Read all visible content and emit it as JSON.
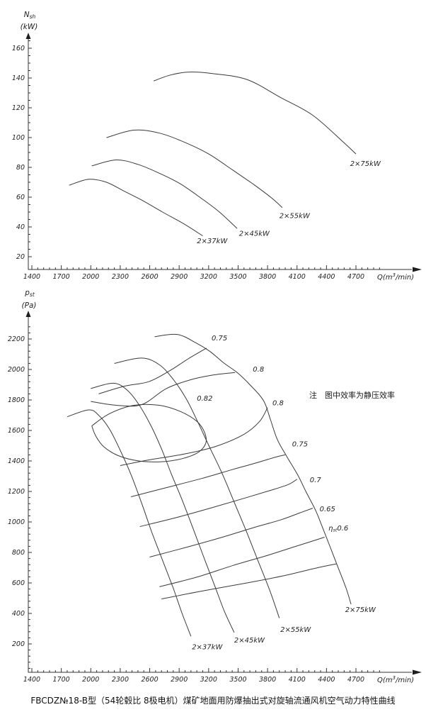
{
  "caption": "FBCDZ№18-B型（54轮毂比 8极电机）煤矿地面用防爆抽出式对旋轴流通风机空气动力特性曲线",
  "note": "注　图中效率为静压效率",
  "chart_data": [
    {
      "type": "line",
      "title": "shaft power vs flow",
      "xlabel": {
        "pre": "Q(m",
        "sup": "3",
        "post": "/min)"
      },
      "ylabel": {
        "main": "N",
        "sub": "sh",
        "unit": "(kW)"
      },
      "xlim": [
        1400,
        4700
      ],
      "xticks": [
        1400,
        1700,
        2000,
        2300,
        2600,
        2900,
        3200,
        3500,
        3800,
        4100,
        4400,
        4700
      ],
      "xminor_step": 60,
      "ylim": [
        20,
        160
      ],
      "yticks": [
        20,
        40,
        60,
        80,
        100,
        120,
        140,
        160
      ],
      "ytick_step": 20,
      "yminor": {
        "from": 25,
        "to": 165,
        "step": 5
      },
      "grid": false,
      "legend": "curve-end labels",
      "series": [
        {
          "name": "2×37kW",
          "points": [
            [
              1780,
              68
            ],
            [
              1980,
              72
            ],
            [
              2160,
              70
            ],
            [
              2340,
              64
            ],
            [
              2520,
              58
            ],
            [
              2730,
              50
            ],
            [
              2950,
              42
            ],
            [
              3140,
              34
            ]
          ],
          "label_at": [
            3080,
            29
          ]
        },
        {
          "name": "2×45kW",
          "points": [
            [
              2010,
              81
            ],
            [
              2260,
              85
            ],
            [
              2480,
              82
            ],
            [
              2700,
              76
            ],
            [
              2910,
              69
            ],
            [
              3130,
              59
            ],
            [
              3310,
              50
            ],
            [
              3490,
              39
            ]
          ],
          "label_at": [
            3510,
            34
          ]
        },
        {
          "name": "2×55kW",
          "points": [
            [
              2160,
              100
            ],
            [
              2440,
              105
            ],
            [
              2700,
              103
            ],
            [
              2950,
              97
            ],
            [
              3200,
              89
            ],
            [
              3450,
              78
            ],
            [
              3670,
              68
            ],
            [
              3850,
              59
            ],
            [
              3950,
              53
            ]
          ],
          "label_at": [
            3920,
            46
          ]
        },
        {
          "name": "2×75kW",
          "points": [
            [
              2640,
              138
            ],
            [
              2810,
              142
            ],
            [
              3000,
              144
            ],
            [
              3240,
              143
            ],
            [
              3590,
              139
            ],
            [
              3930,
              127
            ],
            [
              4260,
              115
            ],
            [
              4570,
              97
            ],
            [
              4700,
              89
            ]
          ],
          "label_at": [
            4640,
            81
          ]
        }
      ]
    },
    {
      "type": "line",
      "title": "static pressure vs flow with efficiency contours",
      "xlabel": {
        "pre": "Q(m",
        "sup": "3",
        "post": "/min)"
      },
      "ylabel": {
        "main": "p",
        "sub": "st",
        "unit": "(Pa)"
      },
      "xlim": [
        1400,
        4700
      ],
      "xticks": [
        1400,
        1700,
        2000,
        2300,
        2600,
        2900,
        3200,
        3500,
        3800,
        4100,
        4400,
        4700
      ],
      "xminor_step": 60,
      "ylim": [
        200,
        2200
      ],
      "yticks": [
        200,
        400,
        600,
        800,
        1000,
        1200,
        1400,
        1600,
        1800,
        2000,
        2200
      ],
      "ytick_step": 200,
      "yminor": {
        "from": 40,
        "to": 2280,
        "step": 40
      },
      "grid": false,
      "series": [
        {
          "name": "2×37kW",
          "points": [
            [
              1760,
              1690
            ],
            [
              1980,
              1735
            ],
            [
              2080,
              1700
            ],
            [
              2190,
              1610
            ],
            [
              2300,
              1470
            ],
            [
              2410,
              1310
            ],
            [
              2520,
              1120
            ],
            [
              2620,
              935
            ],
            [
              2730,
              750
            ],
            [
              2840,
              565
            ],
            [
              2930,
              400
            ],
            [
              3020,
              250
            ]
          ],
          "label_at": [
            3030,
            165
          ]
        },
        {
          "name": "2×45kW",
          "points": [
            [
              2000,
              1875
            ],
            [
              2230,
              1910
            ],
            [
              2370,
              1865
            ],
            [
              2490,
              1770
            ],
            [
              2610,
              1635
            ],
            [
              2720,
              1480
            ],
            [
              2820,
              1315
            ],
            [
              2930,
              1145
            ],
            [
              3040,
              960
            ],
            [
              3150,
              770
            ],
            [
              3260,
              585
            ],
            [
              3360,
              415
            ],
            [
              3460,
              275
            ]
          ],
          "label_at": [
            3460,
            210
          ]
        },
        {
          "name": "2×55kW",
          "points": [
            [
              2240,
              2040
            ],
            [
              2520,
              2075
            ],
            [
              2700,
              2030
            ],
            [
              2840,
              1935
            ],
            [
              2970,
              1810
            ],
            [
              3090,
              1655
            ],
            [
              3210,
              1490
            ],
            [
              3340,
              1315
            ],
            [
              3460,
              1130
            ],
            [
              3580,
              945
            ],
            [
              3700,
              750
            ],
            [
              3820,
              555
            ],
            [
              3920,
              370
            ]
          ],
          "label_at": [
            3930,
            280
          ]
        },
        {
          "name": "2×75kW",
          "points": [
            [
              2650,
              2215
            ],
            [
              2880,
              2230
            ],
            [
              3070,
              2175
            ],
            [
              3210,
              2120
            ],
            [
              3360,
              2040
            ],
            [
              3490,
              1980
            ],
            [
              3620,
              1900
            ],
            [
              3760,
              1795
            ],
            [
              3830,
              1670
            ],
            [
              3900,
              1540
            ],
            [
              4000,
              1425
            ],
            [
              4110,
              1305
            ],
            [
              4190,
              1200
            ],
            [
              4290,
              1075
            ],
            [
              4350,
              980
            ],
            [
              4420,
              865
            ],
            [
              4510,
              715
            ],
            [
              4600,
              565
            ],
            [
              4650,
              460
            ]
          ],
          "label_at": [
            4590,
            410
          ]
        }
      ],
      "contours": [
        {
          "name": "0.75",
          "points": [
            [
              2080,
              1840
            ],
            [
              2340,
              1890
            ],
            [
              2590,
              1920
            ],
            [
              2800,
              1990
            ],
            [
              2980,
              2065
            ],
            [
              3110,
              2115
            ],
            [
              3180,
              2140
            ]
          ],
          "label_at": [
            3230,
            2190
          ]
        },
        {
          "name": "0.8",
          "points": [
            [
              2000,
              1790
            ],
            [
              2260,
              1765
            ],
            [
              2520,
              1770
            ],
            [
              2770,
              1875
            ],
            [
              3030,
              1935
            ],
            [
              3260,
              1965
            ],
            [
              3470,
              1980
            ]
          ],
          "label_at": [
            3650,
            1985
          ]
        },
        {
          "name": "0.82",
          "points": [
            [
              2010,
              1630
            ],
            [
              2190,
              1710
            ],
            [
              2440,
              1765
            ],
            [
              2700,
              1765
            ],
            [
              2910,
              1725
            ],
            [
              3080,
              1660
            ],
            [
              3160,
              1585
            ],
            [
              3170,
              1515
            ],
            [
              3090,
              1455
            ],
            [
              2930,
              1415
            ],
            [
              2720,
              1395
            ],
            [
              2490,
              1400
            ],
            [
              2280,
              1435
            ],
            [
              2130,
              1495
            ],
            [
              2050,
              1565
            ],
            [
              2010,
              1630
            ]
          ],
          "label_at": [
            3080,
            1795
          ]
        },
        {
          "name": "0.8",
          "points": [
            [
              2300,
              1370
            ],
            [
              2620,
              1410
            ],
            [
              2950,
              1445
            ],
            [
              3270,
              1495
            ],
            [
              3560,
              1575
            ],
            [
              3720,
              1660
            ],
            [
              3800,
              1750
            ]
          ],
          "label_at": [
            3850,
            1765
          ]
        },
        {
          "name": "0.75",
          "points": [
            [
              2410,
              1165
            ],
            [
              2770,
              1225
            ],
            [
              3130,
              1285
            ],
            [
              3450,
              1345
            ],
            [
              3700,
              1390
            ],
            [
              3880,
              1425
            ],
            [
              3980,
              1440
            ]
          ],
          "label_at": [
            4050,
            1495
          ]
        },
        {
          "name": "0.7",
          "points": [
            [
              2500,
              970
            ],
            [
              2880,
              1030
            ],
            [
              3240,
              1095
            ],
            [
              3560,
              1155
            ],
            [
              3820,
              1205
            ],
            [
              4010,
              1245
            ],
            [
              4100,
              1280
            ]
          ],
          "label_at": [
            4230,
            1260
          ]
        },
        {
          "name": "0.65",
          "points": [
            [
              2600,
              770
            ],
            [
              2980,
              835
            ],
            [
              3340,
              900
            ],
            [
              3670,
              965
            ],
            [
              3940,
              1015
            ],
            [
              4130,
              1060
            ],
            [
              4260,
              1090
            ]
          ],
          "label_at": [
            4330,
            1070
          ]
        },
        {
          "name": "ηst=0.6",
          "points": [
            [
              2700,
              575
            ],
            [
              3090,
              640
            ],
            [
              3450,
              715
            ],
            [
              3770,
              775
            ],
            [
              4040,
              830
            ],
            [
              4260,
              875
            ],
            [
              4380,
              900
            ]
          ],
          "label_at": [
            4420,
            945
          ]
        },
        {
          "name": "",
          "points": [
            [
              2720,
              495
            ],
            [
              3160,
              550
            ],
            [
              3590,
              600
            ],
            [
              3950,
              645
            ],
            [
              4310,
              700
            ],
            [
              4500,
              725
            ]
          ],
          "label_at": null
        }
      ]
    }
  ],
  "colors": {
    "ink": "#333333",
    "background": "#ffffff"
  }
}
